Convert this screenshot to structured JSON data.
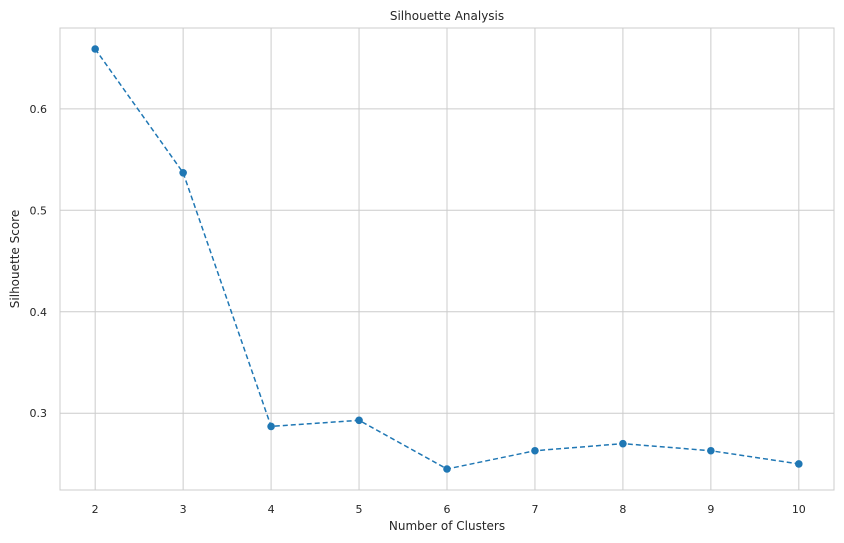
{
  "chart_data": {
    "type": "line",
    "title": "Silhouette Analysis",
    "xlabel": "Number of Clusters",
    "ylabel": "Silhouette Score",
    "x": [
      2,
      3,
      4,
      5,
      6,
      7,
      8,
      9,
      10
    ],
    "series": [
      {
        "values": [
          0.659,
          0.537,
          0.287,
          0.293,
          0.245,
          0.263,
          0.27,
          0.263,
          0.25
        ],
        "color": "#1f77b4",
        "line_style": "dashed",
        "marker": "circle"
      }
    ],
    "xticks": [
      "2",
      "3",
      "4",
      "5",
      "6",
      "7",
      "8",
      "9",
      "10"
    ],
    "yticks": [
      "0.3",
      "0.4",
      "0.5",
      "0.6"
    ],
    "xlim": [
      1.6,
      10.4
    ],
    "ylim": [
      0.2243,
      0.6797
    ],
    "grid": true
  }
}
